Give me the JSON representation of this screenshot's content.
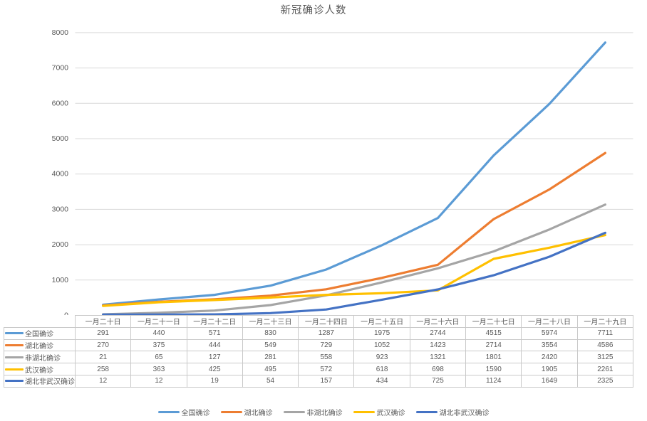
{
  "title": "新冠确诊人数",
  "colors": {
    "grid": "#d9d9d9",
    "axis_text": "#595959",
    "table_border": "#c9c9c9",
    "table_text": "#595959"
  },
  "chart_data": {
    "type": "line",
    "title": "新冠确诊人数",
    "categories": [
      "一月二十日",
      "一月二十一日",
      "一月二十二日",
      "一月二十三日",
      "一月二十四日",
      "一月二十五日",
      "一月二十六日",
      "一月二十七日",
      "一月二十八日",
      "一月二十九日"
    ],
    "series": [
      {
        "name": "全国确诊",
        "color": "#5B9BD5",
        "values": [
          291,
          440,
          571,
          830,
          1287,
          1975,
          2744,
          4515,
          5974,
          7711
        ]
      },
      {
        "name": "湖北确诊",
        "color": "#ED7D31",
        "values": [
          270,
          375,
          444,
          549,
          729,
          1052,
          1423,
          2714,
          3554,
          4586
        ]
      },
      {
        "name": "非湖北确诊",
        "color": "#A5A5A5",
        "values": [
          21,
          65,
          127,
          281,
          558,
          923,
          1321,
          1801,
          2420,
          3125
        ]
      },
      {
        "name": "武汉确诊",
        "color": "#FFC000",
        "values": [
          258,
          363,
          425,
          495,
          572,
          618,
          698,
          1590,
          1905,
          2261
        ]
      },
      {
        "name": "湖北非武汉确诊",
        "color": "#4472C4",
        "values": [
          12,
          12,
          19,
          54,
          157,
          434,
          725,
          1124,
          1649,
          2325
        ]
      }
    ],
    "xlabel": "",
    "ylabel": "",
    "ylim": [
      0,
      9000
    ],
    "yticks": [
      0,
      1000,
      2000,
      3000,
      4000,
      5000,
      6000,
      7000,
      8000,
      9000
    ],
    "grid": true,
    "legend_position": "bottom",
    "data_table_shown": true
  }
}
